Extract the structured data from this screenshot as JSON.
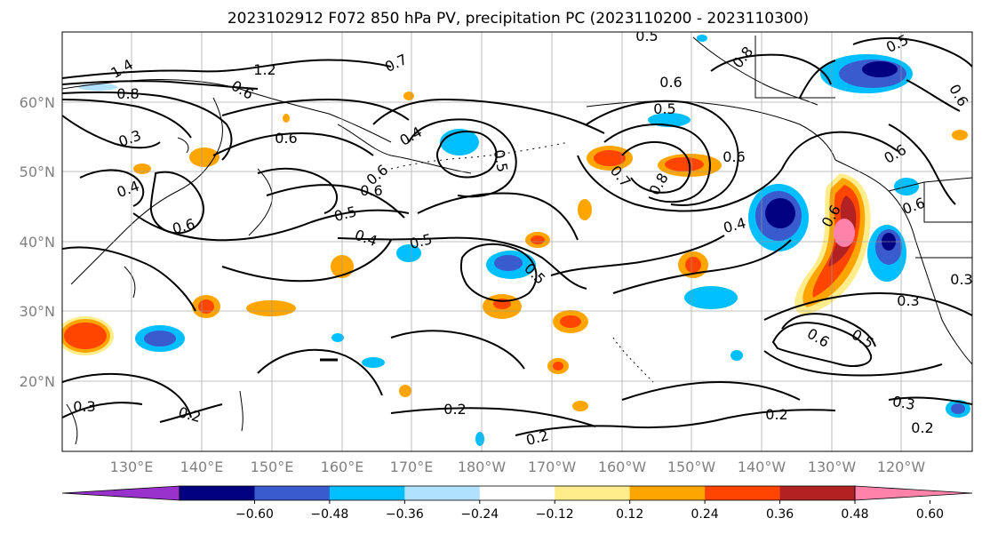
{
  "title": "2023102912 F072 850 hPa PV, precipitation PC (2023110200 - 2023110300)",
  "lon_labels": [
    "130°E",
    "140°E",
    "150°E",
    "160°E",
    "170°E",
    "180°W",
    "170°W",
    "160°W",
    "150°W",
    "140°W",
    "130°W",
    "120°W"
  ],
  "lat_labels": [
    "60°N",
    "50°N",
    "40°N",
    "30°N",
    "20°N"
  ],
  "colorbar": {
    "ticks": [
      "−0.60",
      "−0.48",
      "−0.36",
      "−0.24",
      "−0.12",
      "0.12",
      "0.24",
      "0.36",
      "0.48",
      "0.60"
    ],
    "colors": [
      "#9932cc",
      "#000080",
      "#3a5bcd",
      "#00bfff",
      "#b0e2ff",
      "#ffffff",
      "#ffec8b",
      "#ffa500",
      "#ff4500",
      "#b22222",
      "#ff82ab"
    ]
  },
  "contour_labels": [
    "0.5",
    "1.4",
    "0.7",
    "1.2",
    "0.8",
    "0.6",
    "0.3",
    "0.4",
    "0.5",
    "0.4",
    "0.5",
    "0.6",
    "0.6",
    "0.6",
    "0.8",
    "0.5",
    "0.6",
    "0.7",
    "0.8",
    "0.6",
    "0.4",
    "0.6",
    "0.5",
    "0.6",
    "0.6",
    "0.3",
    "0.6",
    "0.5",
    "0.2",
    "0.2",
    "0.2",
    "0.3",
    "0.2",
    "0.3",
    "0.2",
    "0.6",
    "0.5",
    "0.4",
    "0.5",
    "0.3",
    "0.6"
  ]
}
